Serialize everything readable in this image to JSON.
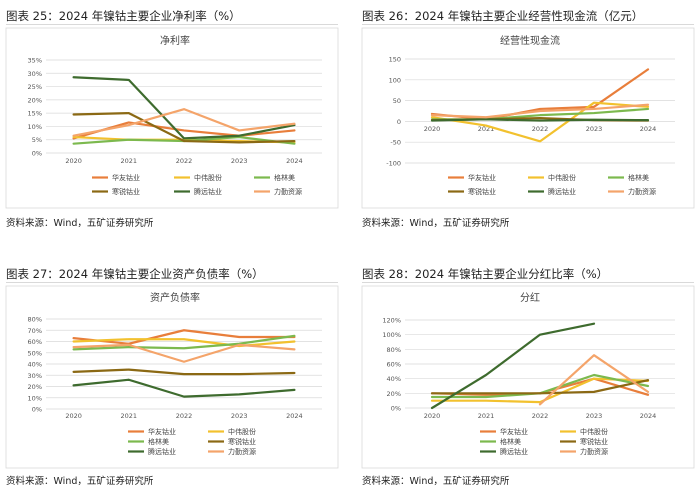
{
  "series_colors": [
    "#E87E3B",
    "#F2C12E",
    "#7CB94E",
    "#8B6914",
    "#3E6B2E",
    "#F4A46A"
  ],
  "figures": [
    {
      "caption": "图表 25：2024 年镍钴主要企业净利率（%）",
      "source": "资料来源：Wind，五矿证券研究所"
    },
    {
      "caption": "图表 26：2024 年镍钴主要企业经营性现金流（亿元）",
      "source": "资料来源：Wind，五矿证券研究所"
    },
    {
      "caption": "图表 27：2024 年镍钴主要企业资产负债率（%）",
      "source": "资料来源：Wind，五矿证券研究所"
    },
    {
      "caption": "图表 28：2024 年镍钴主要企业分红比率（%）",
      "source": "资料来源：Wind，五矿证券研究所"
    }
  ],
  "chart_data": [
    {
      "type": "line",
      "title": "净利率",
      "x": [
        "2020",
        "2021",
        "2022",
        "2023",
        "2024"
      ],
      "ylim": [
        0,
        35
      ],
      "yticks": [
        0,
        5,
        10,
        15,
        20,
        25,
        30,
        35
      ],
      "ytick_labels": [
        "0%",
        "5%",
        "10%",
        "15%",
        "20%",
        "25%",
        "30%",
        "35%"
      ],
      "grid": true,
      "legend": "bottom",
      "series": [
        {
          "name": "华友钴业",
          "values": [
            5.5,
            11.5,
            8.5,
            6.5,
            8.5
          ]
        },
        {
          "name": "中伟股份",
          "values": [
            6.0,
            5.0,
            5.0,
            4.5,
            4.0
          ]
        },
        {
          "name": "格林美",
          "values": [
            3.5,
            5.0,
            4.5,
            6.0,
            3.5
          ]
        },
        {
          "name": "寒锐钴业",
          "values": [
            14.5,
            15.0,
            4.5,
            4.0,
            4.5
          ]
        },
        {
          "name": "腾远钴业",
          "values": [
            28.5,
            27.5,
            5.5,
            6.5,
            10.5
          ]
        },
        {
          "name": "力勤资源",
          "values": [
            6.5,
            10.5,
            16.5,
            8.5,
            11.0
          ]
        }
      ]
    },
    {
      "type": "line",
      "title": "经营性现金流",
      "x": [
        "2020",
        "2021",
        "2022",
        "2023",
        "2024"
      ],
      "ylim": [
        -100,
        150
      ],
      "yticks": [
        -100,
        -50,
        0,
        50,
        100,
        150
      ],
      "ytick_labels": [
        "-100",
        "-50",
        "0",
        "50",
        "100",
        "150"
      ],
      "grid": true,
      "legend": "bottom",
      "series": [
        {
          "name": "华友钴业",
          "values": [
            18,
            5,
            30,
            35,
            125
          ]
        },
        {
          "name": "中伟股份",
          "values": [
            10,
            -10,
            -48,
            45,
            35
          ]
        },
        {
          "name": "格林美",
          "values": [
            5,
            5,
            15,
            20,
            30
          ]
        },
        {
          "name": "寒锐钴业",
          "values": [
            3,
            5,
            8,
            3,
            2
          ]
        },
        {
          "name": "腾远钴业",
          "values": [
            2,
            5,
            2,
            4,
            3
          ]
        },
        {
          "name": "力勤资源",
          "values": [
            15,
            10,
            25,
            30,
            40
          ]
        }
      ]
    },
    {
      "type": "line",
      "title": "资产负债率",
      "x": [
        "2020",
        "2021",
        "2022",
        "2023",
        "2024"
      ],
      "ylim": [
        0,
        80
      ],
      "yticks": [
        0,
        10,
        20,
        30,
        40,
        50,
        60,
        70,
        80
      ],
      "ytick_labels": [
        "0%",
        "10%",
        "20%",
        "30%",
        "40%",
        "50%",
        "60%",
        "70%",
        "80%"
      ],
      "grid": true,
      "legend": "bottom",
      "series": [
        {
          "name": "华友钴业",
          "values": [
            63,
            58,
            70,
            64,
            64
          ]
        },
        {
          "name": "中伟股份",
          "values": [
            60,
            62,
            62,
            56,
            60
          ]
        },
        {
          "name": "格林美",
          "values": [
            53,
            55,
            54,
            58,
            65
          ]
        },
        {
          "name": "寒锐钴业",
          "values": [
            33,
            35,
            31,
            31,
            32
          ]
        },
        {
          "name": "腾远钴业",
          "values": [
            21,
            26,
            11,
            13,
            17
          ]
        },
        {
          "name": "力勤资源",
          "values": [
            55,
            57,
            42,
            57,
            53
          ]
        }
      ]
    },
    {
      "type": "line",
      "title": "分红",
      "x": [
        "2020",
        "2021",
        "2022",
        "2023",
        "2024"
      ],
      "ylim": [
        0,
        120
      ],
      "yticks": [
        0,
        20,
        40,
        60,
        80,
        100,
        120
      ],
      "ytick_labels": [
        "0%",
        "20%",
        "40%",
        "60%",
        "80%",
        "100%",
        "120%"
      ],
      "grid": true,
      "legend": "bottom",
      "series": [
        {
          "name": "华友钴业",
          "values": [
            20,
            18,
            20,
            40,
            18
          ]
        },
        {
          "name": "中伟股份",
          "values": [
            10,
            10,
            8,
            40,
            37
          ]
        },
        {
          "name": "格林美",
          "values": [
            15,
            15,
            20,
            45,
            30
          ]
        },
        {
          "name": "寒锐钴业",
          "values": [
            20,
            20,
            20,
            22,
            38
          ]
        },
        {
          "name": "腾远钴业",
          "values": [
            0,
            45,
            100,
            115,
            null
          ]
        },
        {
          "name": "力勤资源",
          "values": [
            null,
            null,
            5,
            72,
            22
          ]
        }
      ]
    }
  ]
}
